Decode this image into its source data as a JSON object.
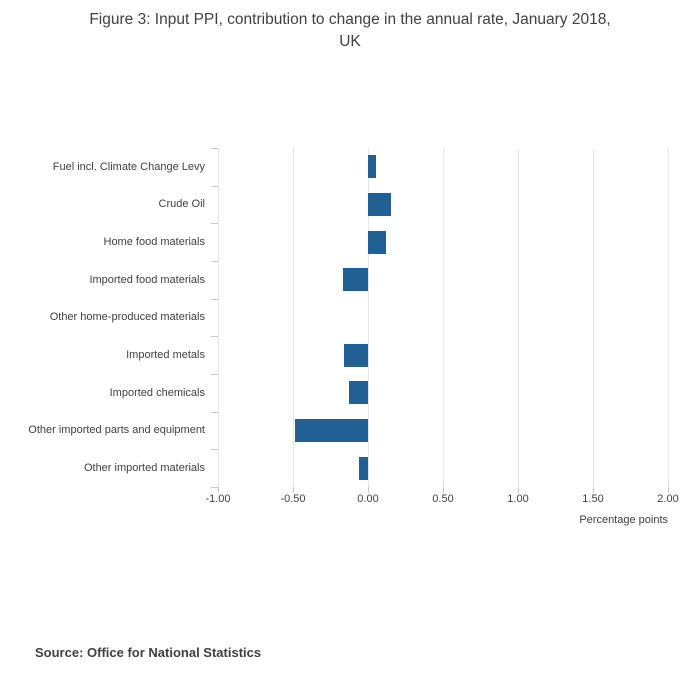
{
  "header": {
    "title_line1": "Figure 3: Input PPI, contribution to change in the annual rate, January 2018,",
    "title_line2": "UK"
  },
  "footer": {
    "source": "Source: Office for National Statistics"
  },
  "chart_data": {
    "type": "bar",
    "orientation": "horizontal",
    "title": "Figure 3: Input PPI, contribution to change in the annual rate, January 2018, UK",
    "categories": [
      "Fuel incl. Climate Change Levy",
      "Crude Oil",
      "Home food materials",
      "Imported food materials",
      "Other home-produced materials",
      "Imported metals",
      "Imported chemicals",
      "Other imported parts and equipment",
      "Other imported materials"
    ],
    "values": [
      0.05,
      0.15,
      0.12,
      -0.17,
      0,
      -0.16,
      -0.13,
      -0.49,
      -0.06
    ],
    "xlabel": "Percentage points",
    "ylabel": "",
    "xlim": [
      -1.0,
      2.0
    ],
    "xticks": [
      -1.0,
      -0.5,
      0.0,
      0.5,
      1.0,
      1.5,
      2.0
    ],
    "xtick_labels": [
      "-1.00",
      "-0.50",
      "0.00",
      "0.50",
      "1.00",
      "1.50",
      "2.00"
    ],
    "grid": true,
    "legend": "none",
    "bar_color": "#206095",
    "gridline_color": "#e6e6e6",
    "tick_color": "#c8c8c8"
  }
}
